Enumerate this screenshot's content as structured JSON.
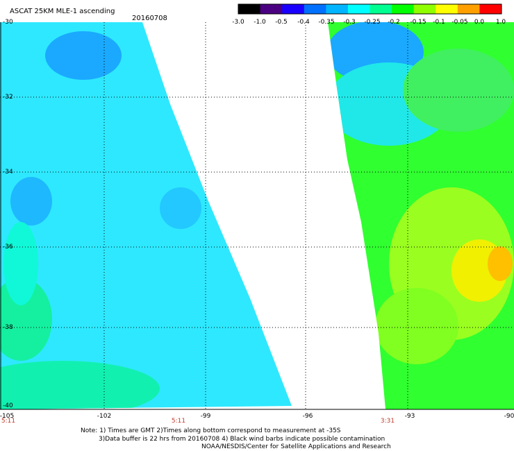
{
  "header": {
    "title": "ASCAT 25KM MLE-1 ascending",
    "date": "20160708"
  },
  "colorbar": {
    "labels": [
      "-3.0",
      "-1.0",
      "-0.5",
      "-0.4",
      "-0.35",
      "-0.3",
      "-0.25",
      "-0.2",
      "-0.15",
      "-0.1",
      "-0.05",
      "0.0",
      "1.0"
    ],
    "colors": [
      "#000000",
      "#4a0080",
      "#1a00ff",
      "#0070ff",
      "#00b4ff",
      "#00ffff",
      "#00ff90",
      "#00ff00",
      "#90ff00",
      "#ffff00",
      "#ffa000",
      "#ff0000"
    ]
  },
  "map": {
    "lat_labels": [
      "-30",
      "-32",
      "-34",
      "-36",
      "-38",
      "-40"
    ],
    "lon_labels": [
      "-105",
      "-102",
      "-99",
      "-96",
      "-93",
      "-90"
    ],
    "pass_times": [
      "5:11",
      "5:11",
      "3:31"
    ],
    "grid_lines": true
  },
  "notes": {
    "line1": "Note: 1) Times are GMT 2)Times along bottom correspond to measurement at -35S",
    "line2": "3)Data buffer is 22 hrs from 20160708 4) Black wind barbs indicate possible contamination",
    "line3": "NOAA/NESDIS/Center for Satellite Applications and Research"
  }
}
